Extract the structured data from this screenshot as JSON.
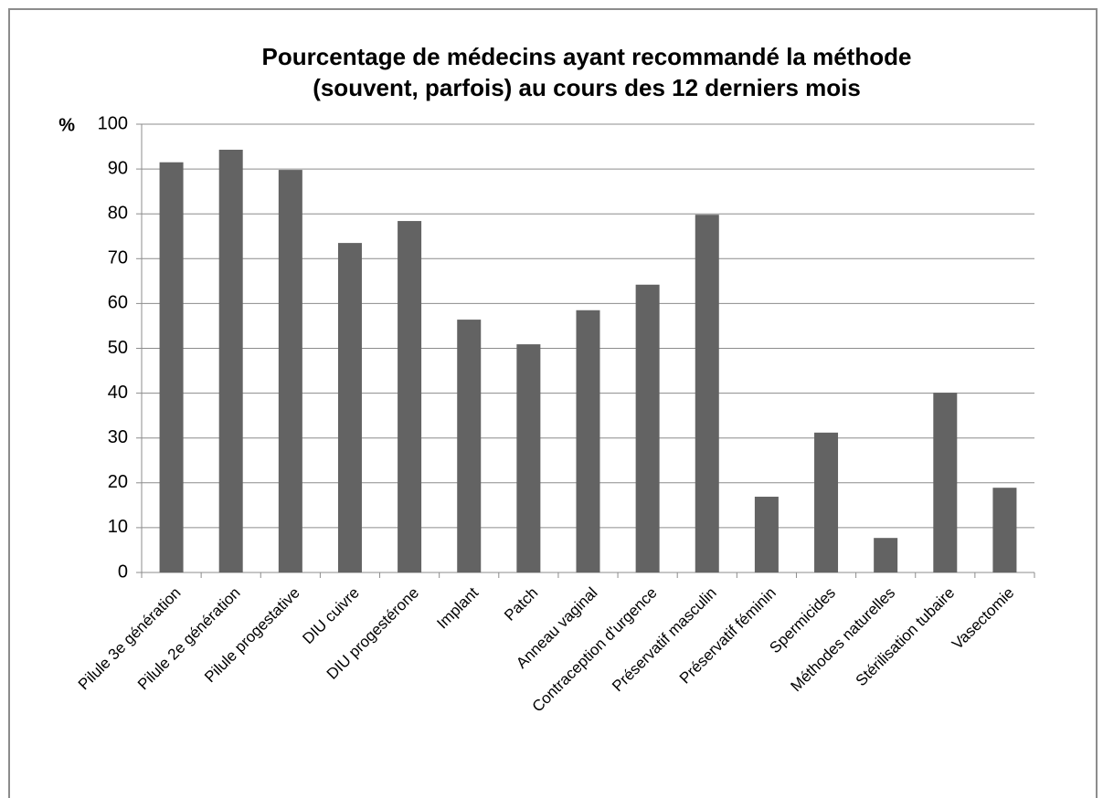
{
  "chart_data": {
    "type": "bar",
    "title": [
      "Pourcentage de médecins ayant recommandé la méthode",
      "(souvent, parfois) au cours des 12 derniers mois"
    ],
    "y_label": "%",
    "categories": [
      "Pilule 3e génération",
      "Pilule 2e génération",
      "Pilule progestative",
      "DIU cuivre",
      "DIU progestérone",
      "Implant",
      "Patch",
      "Anneau vaginal",
      "Contraception d'urgence",
      "Préservatif masculin",
      "Préservatif féminin",
      "Spermicides",
      "Méthodes naturelles",
      "Stérilisation tubaire",
      "Vasectomie"
    ],
    "values": [
      91.5,
      94.3,
      89.8,
      73.5,
      78.4,
      56.4,
      50.9,
      58.5,
      64.2,
      79.8,
      16.9,
      31.2,
      7.7,
      40.1,
      18.9
    ],
    "color": "#636363",
    "ylim": [
      0,
      100
    ],
    "yticks": [
      0,
      10,
      20,
      30,
      40,
      50,
      60,
      70,
      80,
      90,
      100
    ],
    "grid": true
  }
}
